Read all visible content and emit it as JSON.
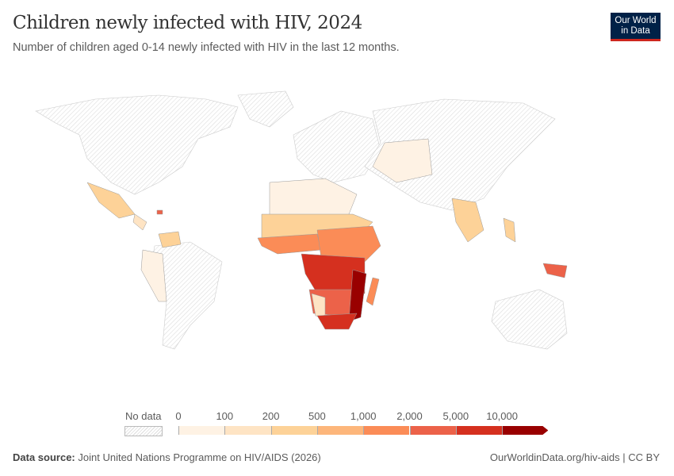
{
  "header": {
    "title": "Children newly infected with HIV, 2024",
    "subtitle": "Number of children aged 0-14 newly infected with HIV in the last 12 months.",
    "logo_line1": "Our World",
    "logo_line2": "in Data"
  },
  "legend": {
    "no_data_label": "No data",
    "ticks": [
      "0",
      "100",
      "200",
      "500",
      "1,000",
      "2,000",
      "5,000",
      "10,000"
    ],
    "colors": [
      "#fef2e4",
      "#fee4c4",
      "#fdd298",
      "#fdb67b",
      "#fb8c57",
      "#ec6249",
      "#d5301f",
      "#990000"
    ]
  },
  "footer": {
    "source_label": "Data source:",
    "source": "Joint United Nations Programme on HIV/AIDS (2026)",
    "link": "OurWorldinData.org/hiv-aids | CC BY"
  }
}
